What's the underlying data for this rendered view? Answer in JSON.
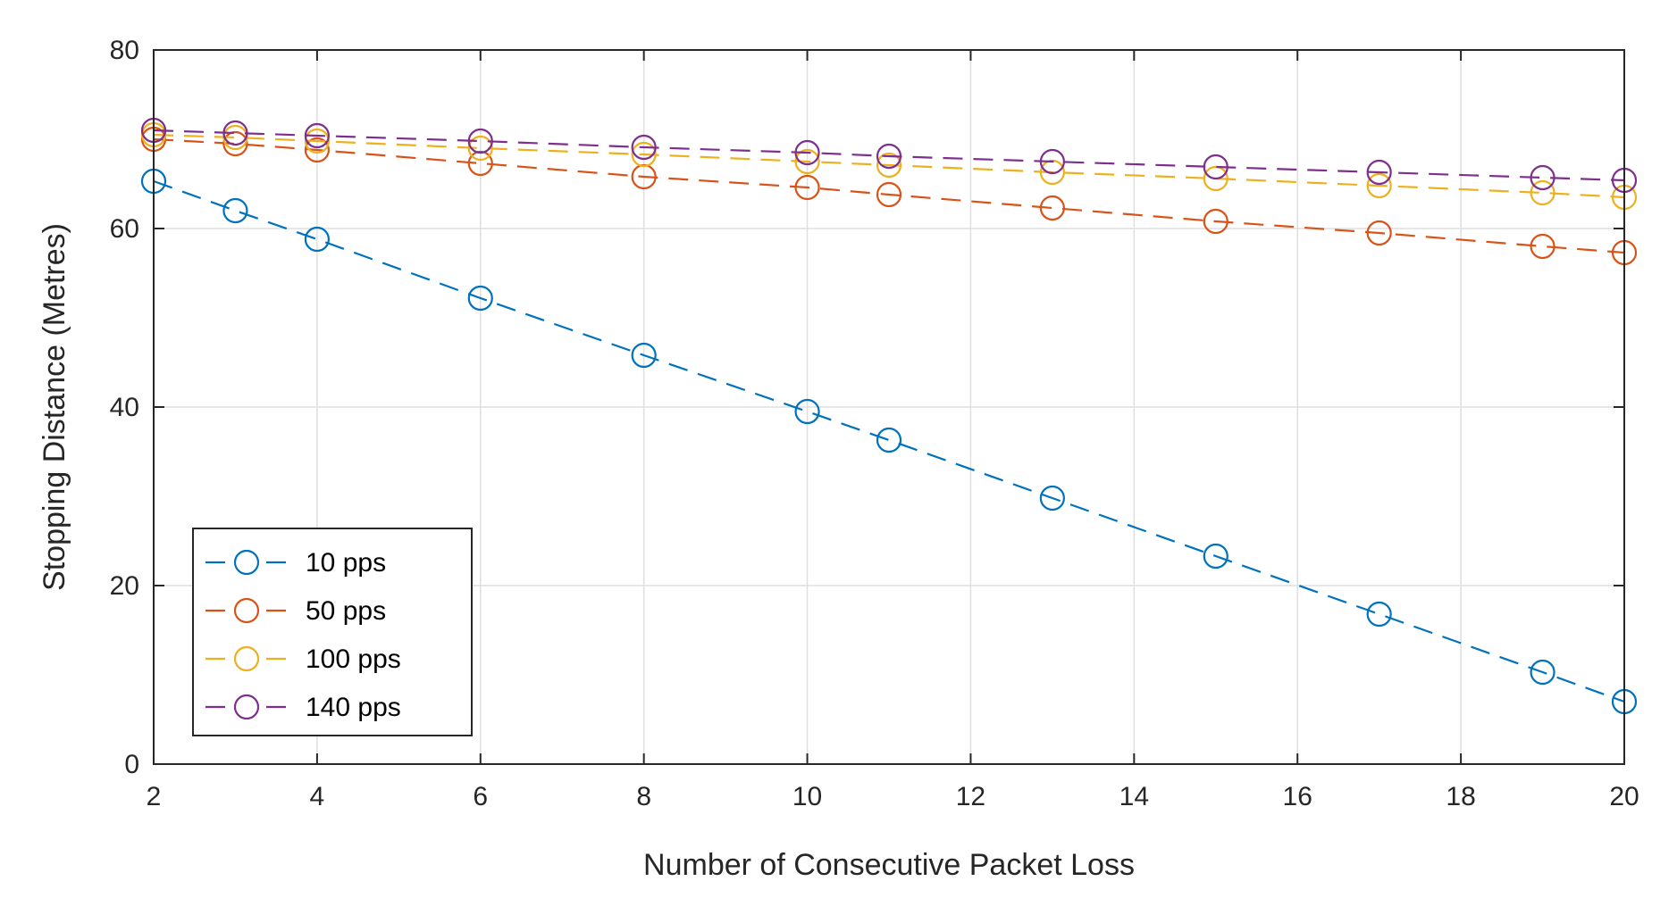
{
  "chart_data": {
    "type": "line",
    "title": "",
    "xlabel": "Number of Consecutive Packet Loss",
    "ylabel": "Stopping Distance (Metres)",
    "xlim": [
      2,
      20
    ],
    "ylim": [
      0,
      80
    ],
    "x_ticks": [
      2,
      4,
      6,
      8,
      10,
      12,
      14,
      16,
      18,
      20
    ],
    "y_ticks": [
      0,
      20,
      40,
      60,
      80
    ],
    "grid": true,
    "legend_position": "bottom-left",
    "line_style": "dashed",
    "marker": "circle",
    "x": [
      2,
      3,
      4,
      6,
      8,
      10,
      11,
      13,
      15,
      17,
      19,
      20
    ],
    "series": [
      {
        "name": "10 pps",
        "color": "#0072BD",
        "values": [
          65.3,
          62.0,
          58.8,
          52.2,
          45.8,
          39.5,
          36.3,
          29.8,
          23.3,
          16.8,
          10.3,
          7.0
        ]
      },
      {
        "name": "50 pps",
        "color": "#D95319",
        "values": [
          70.0,
          69.5,
          68.8,
          67.3,
          65.8,
          64.6,
          63.8,
          62.3,
          60.8,
          59.5,
          58.0,
          57.3
        ]
      },
      {
        "name": "100 pps",
        "color": "#EDB120",
        "values": [
          70.5,
          70.2,
          69.8,
          69.0,
          68.3,
          67.5,
          67.1,
          66.3,
          65.6,
          64.8,
          64.0,
          63.5
        ]
      },
      {
        "name": "140 pps",
        "color": "#7E2F8E",
        "values": [
          71.0,
          70.7,
          70.4,
          69.8,
          69.1,
          68.5,
          68.1,
          67.5,
          66.9,
          66.3,
          65.7,
          65.4
        ]
      }
    ]
  }
}
